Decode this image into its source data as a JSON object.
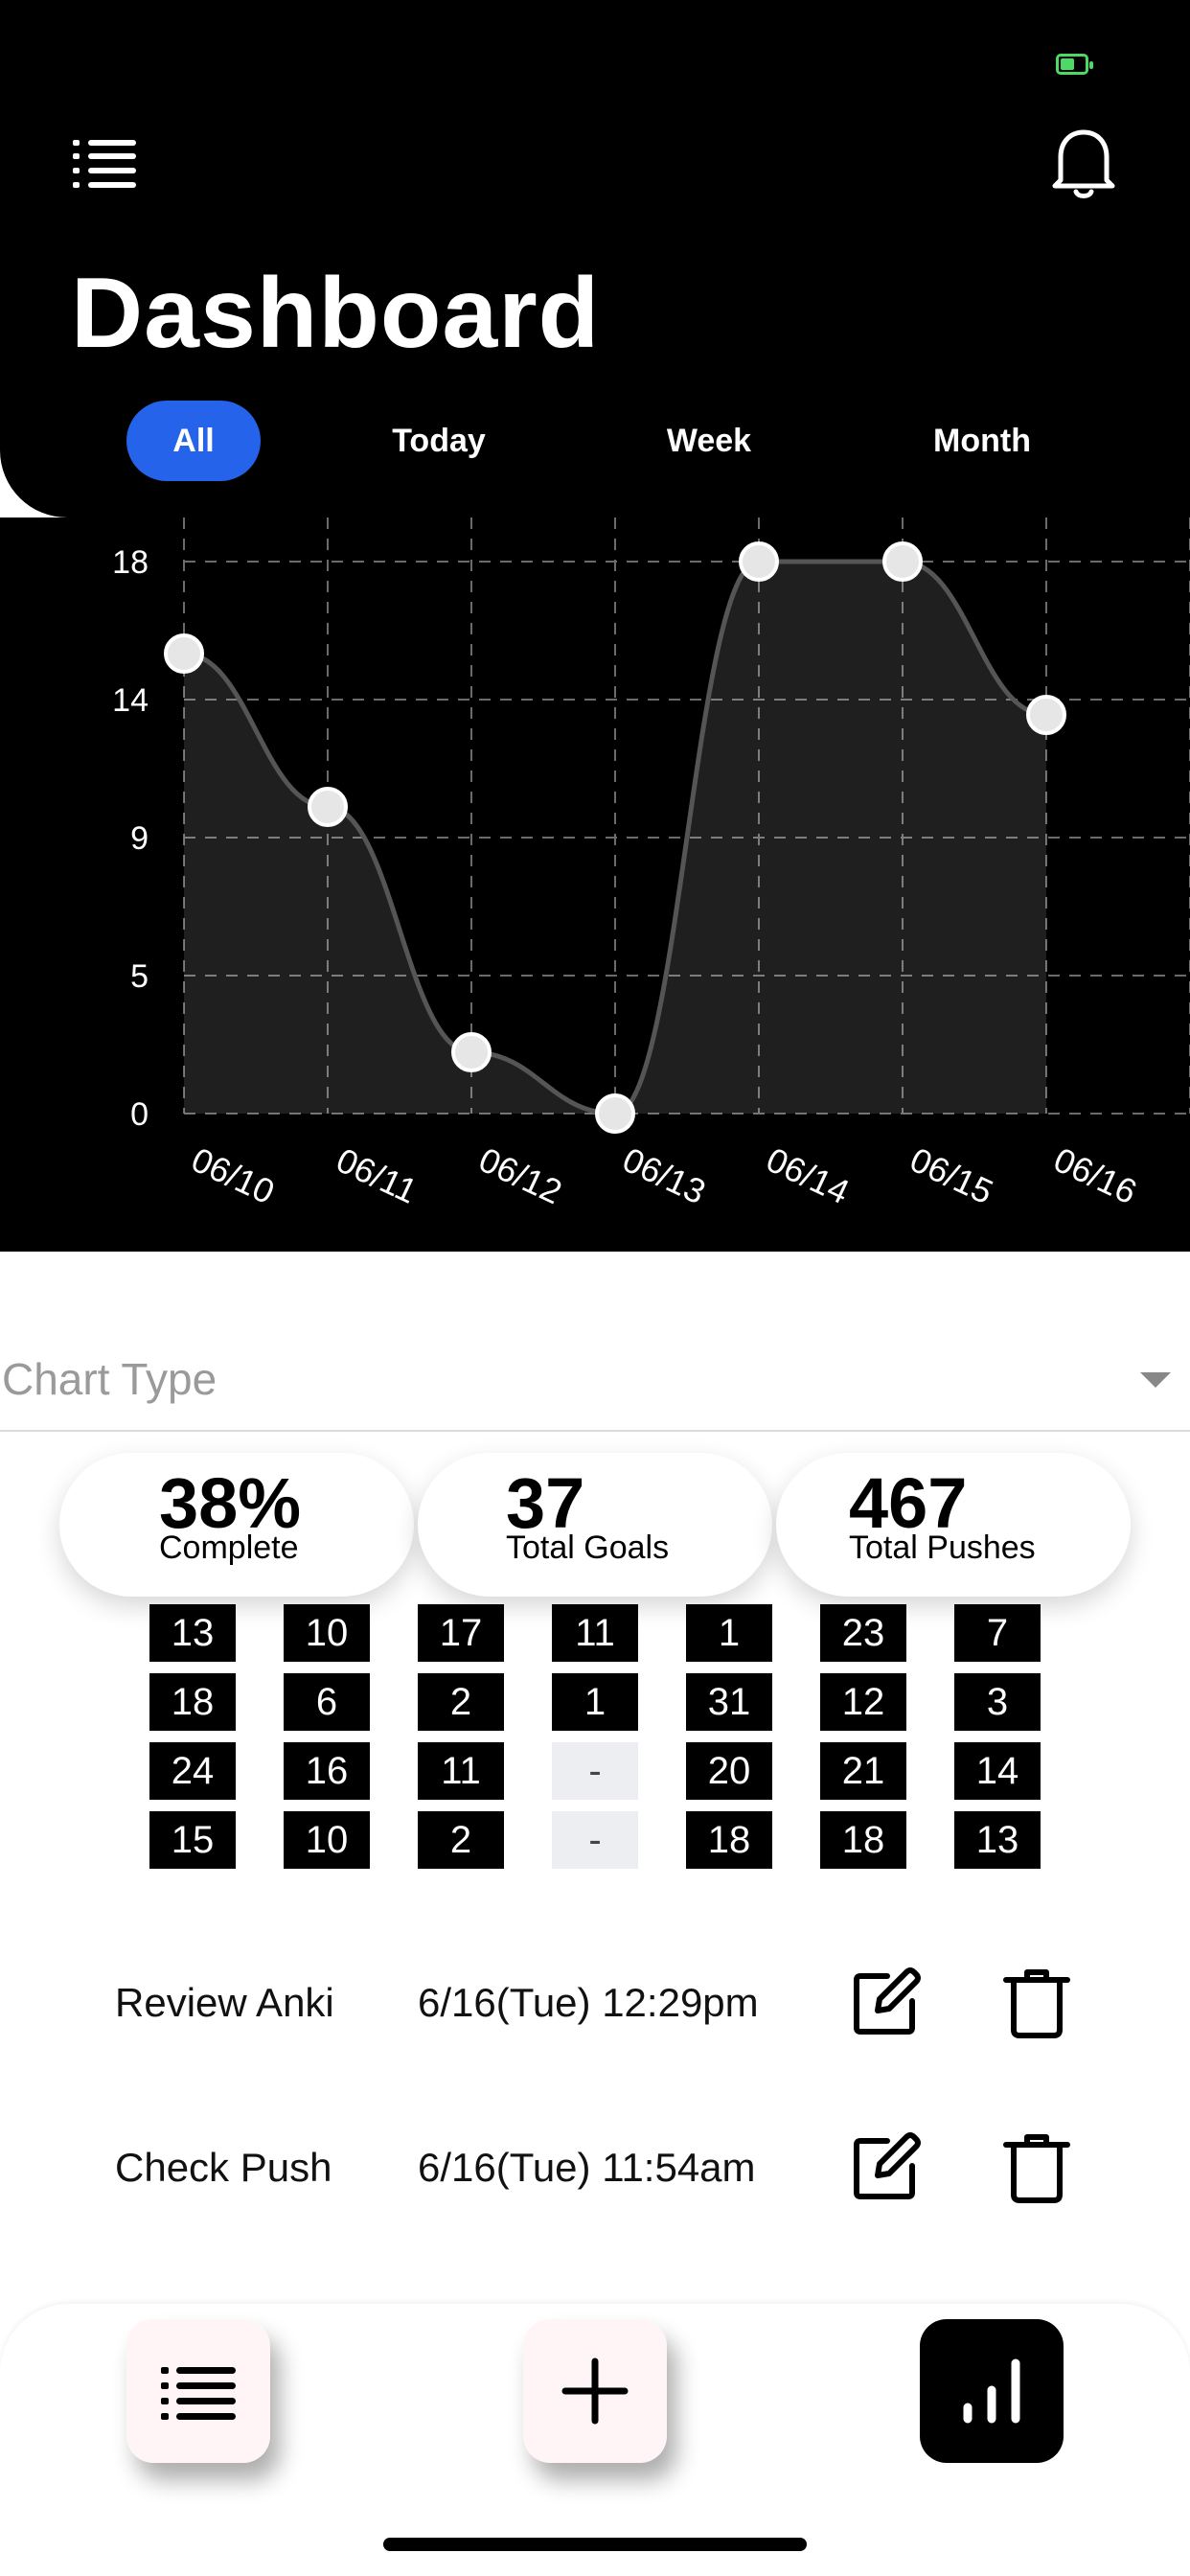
{
  "header": {
    "title": "Dashboard",
    "menu_icon": "list-icon",
    "notification_icon": "bell-icon"
  },
  "tabs": [
    {
      "label": "All",
      "active": true
    },
    {
      "label": "Today",
      "active": false
    },
    {
      "label": "Week",
      "active": false
    },
    {
      "label": "Month",
      "active": false
    }
  ],
  "chart_data": {
    "type": "area",
    "x": [
      "06/10",
      "06/11",
      "06/12",
      "06/13",
      "06/14",
      "06/15",
      "06/16"
    ],
    "values": [
      15,
      10,
      2,
      0,
      18,
      18,
      13
    ],
    "yticks": [
      "18",
      "14",
      "9",
      "5",
      "0"
    ],
    "ylim": [
      0,
      18
    ],
    "grid": true
  },
  "chart_type": {
    "label": "Chart Type",
    "icon": "chevron-down-icon"
  },
  "stats": [
    {
      "value": "38%",
      "label": "Complete"
    },
    {
      "value": "37",
      "label": "Total Goals"
    },
    {
      "value": "467",
      "label": "Total Pushes"
    }
  ],
  "grid_rows": [
    [
      "13",
      "10",
      "17",
      "11",
      "1",
      "23",
      "7"
    ],
    [
      "18",
      "6",
      "2",
      "1",
      "31",
      "12",
      "3"
    ],
    [
      "24",
      "16",
      "11",
      "-",
      "20",
      "21",
      "14"
    ],
    [
      "15",
      "10",
      "2",
      "-",
      "18",
      "18",
      "13"
    ]
  ],
  "items": [
    {
      "name": "Review Anki",
      "time": "6/16(Tue) 12:29pm"
    },
    {
      "name": "Check Push",
      "time": "6/16(Tue) 11:54am"
    }
  ],
  "bottom_nav": [
    {
      "icon": "list-icon"
    },
    {
      "icon": "plus-icon"
    },
    {
      "icon": "bar-chart-icon",
      "active": true
    }
  ],
  "colors": {
    "accent": "#2563eb",
    "battery": "#4cd964",
    "background": "#000000"
  }
}
